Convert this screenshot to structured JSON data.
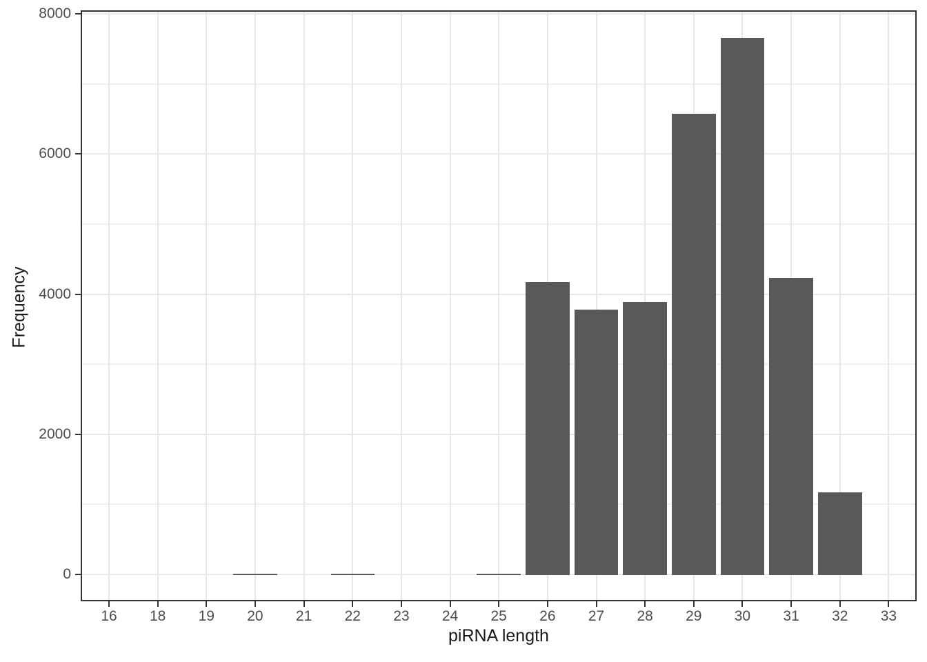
{
  "chart_data": {
    "type": "bar",
    "title": "",
    "xlabel": "piRNA length",
    "ylabel": "Frequency",
    "categories": [
      "16",
      "18",
      "19",
      "20",
      "21",
      "22",
      "23",
      "24",
      "25",
      "26",
      "27",
      "28",
      "29",
      "30",
      "31",
      "32",
      "33"
    ],
    "values": [
      0,
      0,
      0,
      20,
      0,
      20,
      0,
      0,
      20,
      4180,
      3790,
      3900,
      6580,
      7670,
      4240,
      1180,
      0
    ],
    "y_major_ticks": [
      0,
      2000,
      4000,
      6000,
      8000
    ],
    "y_tick_labels": [
      "0",
      "2000",
      "4000",
      "6000",
      "8000"
    ],
    "y_minor_ticks": [
      1000,
      3000,
      5000,
      7000
    ],
    "ylim": [
      0,
      8000
    ],
    "grid": "major and minor horizontal, major vertical",
    "legend": "none",
    "colors": {
      "bar_fill": "#595959",
      "panel_border": "#333333",
      "grid_major": "#e7e7e7",
      "grid_minor": "#f0f0f0",
      "axis_text": "#4d4d4d",
      "axis_title": "#1a1a1a",
      "background": "#ffffff"
    }
  }
}
